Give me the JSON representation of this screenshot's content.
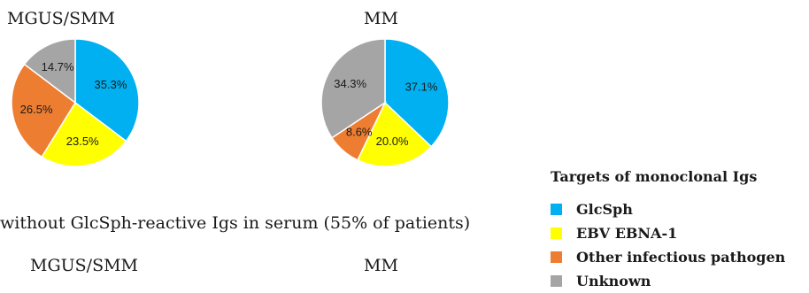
{
  "chart_data": [
    {
      "type": "pie",
      "title": "MGUS/SMM",
      "slices": [
        {
          "name": "GlcSph",
          "value": 35.3,
          "label": "35.3%",
          "color": "#00b0f0"
        },
        {
          "name": "EBV EBNA-1",
          "value": 23.5,
          "label": "23.5%",
          "color": "#ffff00"
        },
        {
          "name": "Other infectious pathogen",
          "value": 26.5,
          "label": "26.5%",
          "color": "#ed7d31"
        },
        {
          "name": "Unknown",
          "value": 14.7,
          "label": "14.7%",
          "color": "#a5a5a5"
        }
      ]
    },
    {
      "type": "pie",
      "title": "MM",
      "slices": [
        {
          "name": "GlcSph",
          "value": 37.1,
          "label": "37.1%",
          "color": "#00b0f0"
        },
        {
          "name": "EBV EBNA-1",
          "value": 20.0,
          "label": "20.0%",
          "color": "#ffff00"
        },
        {
          "name": "Other infectious pathogen",
          "value": 8.6,
          "label": "8.6%",
          "color": "#ed7d31"
        },
        {
          "name": "Unknown",
          "value": 34.3,
          "label": "34.3%",
          "color": "#a5a5a5"
        }
      ]
    }
  ],
  "section2": {
    "title": "without GlcSph-reactive Igs in serum (55% of patients)",
    "left_title": "MGUS/SMM",
    "right_title": "MM"
  },
  "legend": {
    "title": "Targets of monoclonal Igs",
    "items": [
      {
        "label": "GlcSph",
        "color": "#00b0f0"
      },
      {
        "label": "EBV EBNA-1",
        "color": "#ffff00"
      },
      {
        "label": "Other infectious pathogen",
        "color": "#ed7d31"
      },
      {
        "label": "Unknown",
        "color": "#a5a5a5"
      }
    ]
  }
}
